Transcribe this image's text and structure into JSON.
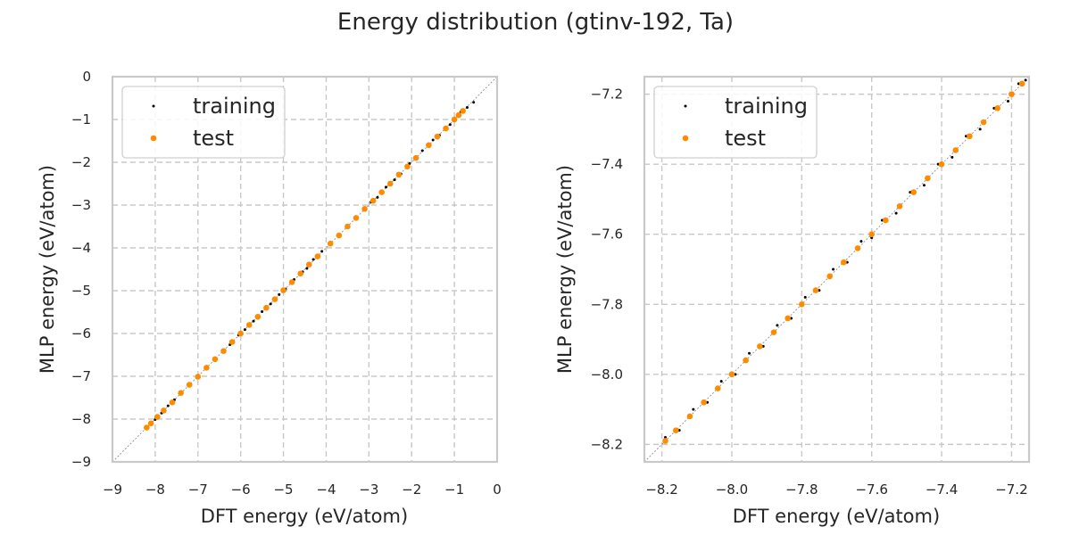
{
  "figure_title": "Energy distribution (gtinv-192, Ta)",
  "colors": {
    "training": "#000000",
    "test": "#ff8c00",
    "grid": "#c8c8c8",
    "spine": "#c9c9c9",
    "diagonal": "#808080"
  },
  "chart_data": [
    {
      "type": "scatter",
      "xlabel": "DFT energy (eV/atom)",
      "ylabel": "MLP energy (eV/atom)",
      "xlim": [
        -9,
        0
      ],
      "ylim": [
        -9,
        0
      ],
      "xticks": [
        -9,
        -8,
        -7,
        -6,
        -5,
        -4,
        -3,
        -2,
        -1,
        0
      ],
      "yticks": [
        -9,
        -8,
        -7,
        -6,
        -5,
        -4,
        -3,
        -2,
        -1,
        0
      ],
      "xtick_labels": [
        "−9",
        "−8",
        "−7",
        "−6",
        "−5",
        "−4",
        "−3",
        "−2",
        "−1",
        "0"
      ],
      "ytick_labels": [
        "−9",
        "−8",
        "−7",
        "−6",
        "−5",
        "−4",
        "−3",
        "−2",
        "−1",
        "0"
      ],
      "grid": true,
      "legend": "top-left",
      "reference_line": "y = x",
      "series": [
        {
          "name": "training",
          "x": [
            -8.2,
            -8.1,
            -8.0,
            -7.85,
            -7.7,
            -7.55,
            -7.4,
            -7.2,
            -7.0,
            -6.8,
            -6.6,
            -6.4,
            -6.25,
            -6.05,
            -5.9,
            -5.7,
            -5.5,
            -5.3,
            -5.1,
            -4.95,
            -4.75,
            -4.55,
            -4.45,
            -4.3,
            -4.1,
            -3.9,
            -3.7,
            -3.5,
            -3.3,
            -3.1,
            -2.95,
            -2.8,
            -2.6,
            -2.4,
            -2.25,
            -2.05,
            -1.9,
            -1.75,
            -1.6,
            -1.5,
            -1.35,
            -1.2,
            -1.1,
            -1.0,
            -0.9,
            -0.85,
            -0.8,
            -0.7,
            -0.55
          ],
          "y": [
            -8.2,
            -8.09,
            -8.01,
            -7.86,
            -7.69,
            -7.55,
            -7.41,
            -7.21,
            -7.0,
            -6.81,
            -6.59,
            -6.41,
            -6.26,
            -6.04,
            -5.91,
            -5.71,
            -5.49,
            -5.31,
            -5.09,
            -4.96,
            -4.74,
            -4.56,
            -4.48,
            -4.27,
            -4.08,
            -3.91,
            -3.72,
            -3.48,
            -3.29,
            -3.12,
            -2.93,
            -2.82,
            -2.58,
            -2.41,
            -2.27,
            -2.03,
            -1.91,
            -1.73,
            -1.62,
            -1.48,
            -1.37,
            -1.18,
            -1.12,
            -0.97,
            -0.93,
            -0.82,
            -0.83,
            -0.72,
            -0.6
          ]
        },
        {
          "name": "test",
          "x": [
            -8.2,
            -8.1,
            -7.95,
            -7.8,
            -7.6,
            -7.4,
            -7.2,
            -7.0,
            -6.8,
            -6.6,
            -6.4,
            -6.2,
            -6.0,
            -5.8,
            -5.6,
            -5.4,
            -5.2,
            -5.0,
            -4.8,
            -4.6,
            -4.4,
            -4.2,
            -3.9,
            -3.7,
            -3.5,
            -3.3,
            -3.1,
            -2.9,
            -2.7,
            -2.5,
            -2.3,
            -2.1,
            -1.9,
            -1.6,
            -1.4,
            -1.2,
            -1.0,
            -0.9,
            -0.8
          ],
          "y": [
            -8.2,
            -8.1,
            -7.95,
            -7.8,
            -7.61,
            -7.39,
            -7.2,
            -7.01,
            -6.8,
            -6.6,
            -6.41,
            -6.2,
            -6.0,
            -5.8,
            -5.61,
            -5.4,
            -5.2,
            -4.99,
            -4.8,
            -4.6,
            -4.39,
            -4.2,
            -3.9,
            -3.71,
            -3.5,
            -3.3,
            -3.09,
            -2.9,
            -2.7,
            -2.5,
            -2.29,
            -2.1,
            -1.9,
            -1.6,
            -1.4,
            -1.21,
            -1.0,
            -0.9,
            -0.8
          ]
        }
      ]
    },
    {
      "type": "scatter",
      "xlabel": "DFT energy (eV/atom)",
      "ylabel": "MLP energy (eV/atom)",
      "xlim": [
        -8.25,
        -7.15
      ],
      "ylim": [
        -8.25,
        -7.15
      ],
      "xticks": [
        -8.2,
        -8.0,
        -7.8,
        -7.6,
        -7.4,
        -7.2
      ],
      "yticks": [
        -8.2,
        -8.0,
        -7.8,
        -7.6,
        -7.4,
        -7.2
      ],
      "xtick_labels": [
        "−8.2",
        "−8.0",
        "−7.8",
        "−7.6",
        "−7.4",
        "−7.2"
      ],
      "ytick_labels": [
        "−8.2",
        "−8.0",
        "−7.8",
        "−7.6",
        "−7.4",
        "−7.2"
      ],
      "grid": true,
      "legend": "top-left",
      "reference_line": "y = x",
      "series": [
        {
          "name": "training",
          "x": [
            -8.19,
            -8.15,
            -8.11,
            -8.07,
            -8.03,
            -7.99,
            -7.95,
            -7.91,
            -7.87,
            -7.83,
            -7.79,
            -7.75,
            -7.71,
            -7.67,
            -7.63,
            -7.6,
            -7.57,
            -7.53,
            -7.49,
            -7.45,
            -7.41,
            -7.37,
            -7.33,
            -7.29,
            -7.25,
            -7.21,
            -7.18,
            -7.16
          ],
          "y": [
            -8.18,
            -8.16,
            -8.1,
            -8.08,
            -8.02,
            -8.0,
            -7.94,
            -7.92,
            -7.86,
            -7.84,
            -7.78,
            -7.76,
            -7.7,
            -7.68,
            -7.62,
            -7.61,
            -7.56,
            -7.54,
            -7.48,
            -7.46,
            -7.4,
            -7.38,
            -7.32,
            -7.3,
            -7.24,
            -7.22,
            -7.17,
            -7.16
          ]
        },
        {
          "name": "test",
          "x": [
            -8.19,
            -8.16,
            -8.12,
            -8.08,
            -8.04,
            -8.0,
            -7.96,
            -7.92,
            -7.88,
            -7.84,
            -7.8,
            -7.76,
            -7.72,
            -7.68,
            -7.64,
            -7.6,
            -7.56,
            -7.52,
            -7.48,
            -7.44,
            -7.4,
            -7.36,
            -7.32,
            -7.28,
            -7.24,
            -7.2,
            -7.17
          ],
          "y": [
            -8.19,
            -8.16,
            -8.12,
            -8.08,
            -8.04,
            -8.0,
            -7.96,
            -7.92,
            -7.88,
            -7.84,
            -7.8,
            -7.76,
            -7.72,
            -7.68,
            -7.64,
            -7.6,
            -7.56,
            -7.52,
            -7.48,
            -7.44,
            -7.4,
            -7.36,
            -7.32,
            -7.28,
            -7.24,
            -7.2,
            -7.17
          ]
        }
      ]
    }
  ]
}
